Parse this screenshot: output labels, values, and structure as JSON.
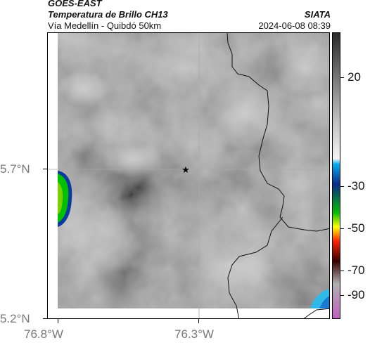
{
  "header": {
    "satellite": "GOES-EAST",
    "product": "Temperatura de Brillo CH13",
    "route": "Vía Medellín - Quibdó 50km",
    "org": "SIATA",
    "datetime": "2024-06-08 08:39"
  },
  "axes": {
    "y_labels": [
      "5.7°N",
      "5.2°N"
    ],
    "x_labels": [
      "76.8°W",
      "76.3°W"
    ]
  },
  "colorbar": {
    "labels": [
      "20",
      "-30",
      "-50",
      "-70",
      "-90"
    ],
    "stops": [
      "#2a2a2a",
      "#bdbdbd",
      "#f5f5f5",
      "#00aeef",
      "#0a2a8c",
      "#00c000",
      "#ffff00",
      "#ff2000",
      "#3a0000",
      "#b0b0b0",
      "#c060c0"
    ]
  },
  "map": {
    "marker": "star",
    "colors": {
      "cloud_gray": "#8e8e8e",
      "border": "#000000",
      "cold_green": "#00d000",
      "cold_blue": "#1090e0"
    }
  }
}
